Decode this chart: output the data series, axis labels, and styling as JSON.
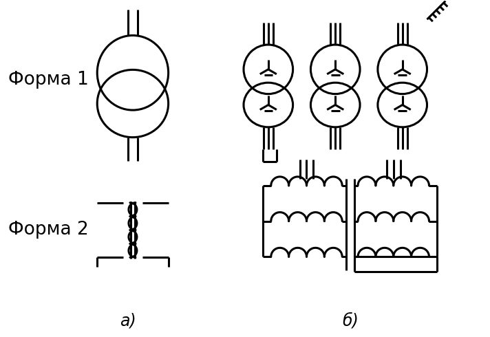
{
  "bg_color": "#ffffff",
  "line_color": "#000000",
  "label_forma1": "Форма 1",
  "label_forma2": "Форма 2",
  "label_a": "а)",
  "label_b": "б)",
  "figsize": [
    7.12,
    4.9
  ],
  "dpi": 100
}
